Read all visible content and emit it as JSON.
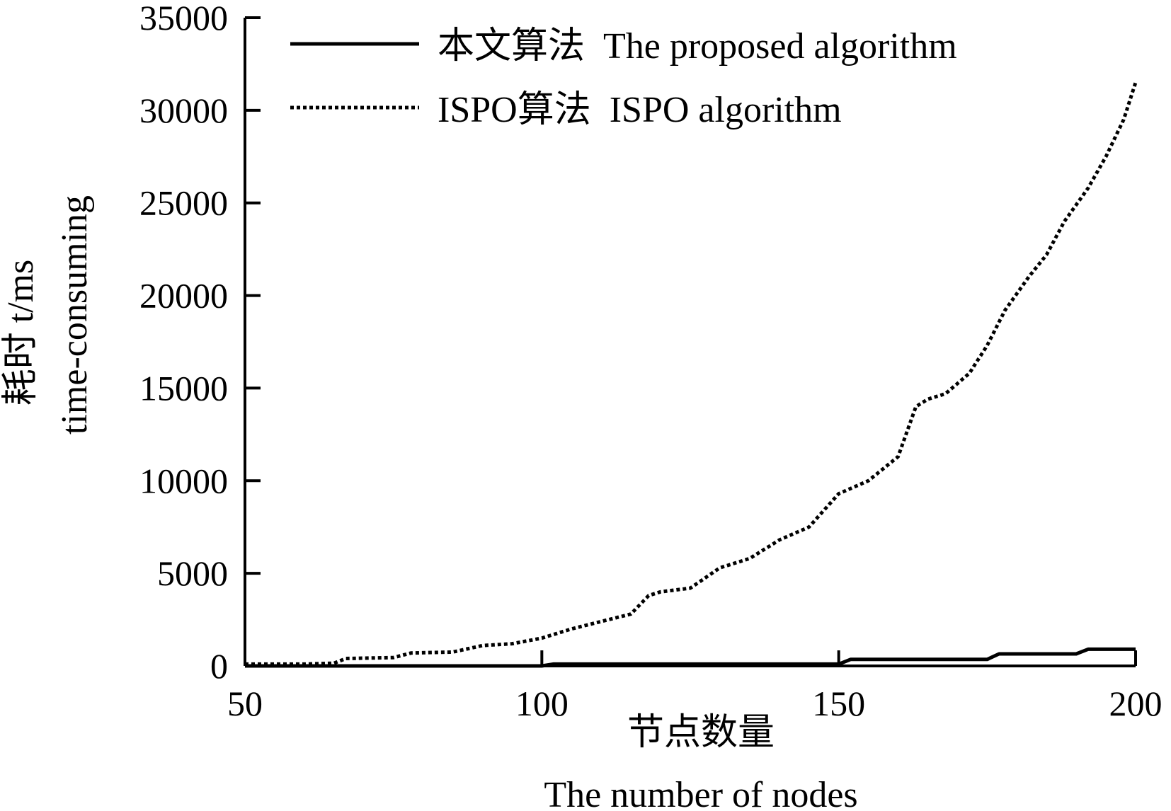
{
  "chart_data": {
    "type": "line",
    "title": "",
    "xlabel_cn": "节点数量",
    "xlabel_en": "The number of nodes",
    "ylabel_cn": "耗时 t/ms",
    "ylabel_en": "time-consuming",
    "xlim": [
      50,
      200
    ],
    "ylim": [
      0,
      35000
    ],
    "x_ticks": [
      50,
      100,
      150,
      200
    ],
    "y_ticks": [
      0,
      5000,
      10000,
      15000,
      20000,
      25000,
      30000,
      35000
    ],
    "grid": false,
    "legend_position": "top",
    "series": [
      {
        "name": "本文算法  The proposed algorithm",
        "style": "solid",
        "x": [
          50,
          100,
          102,
          150,
          152,
          175,
          177,
          190,
          192,
          200
        ],
        "y": [
          0,
          0,
          100,
          100,
          350,
          350,
          650,
          650,
          900,
          900
        ]
      },
      {
        "name": "ISPO算法  ISPO algorithm",
        "style": "dotted",
        "x": [
          50,
          60,
          65,
          67,
          75,
          78,
          85,
          90,
          95,
          100,
          105,
          110,
          115,
          118,
          120,
          125,
          130,
          135,
          140,
          145,
          150,
          155,
          160,
          163,
          165,
          168,
          172,
          175,
          178,
          182,
          185,
          188,
          192,
          195,
          198,
          200
        ],
        "y": [
          100,
          100,
          150,
          400,
          450,
          700,
          750,
          1100,
          1200,
          1500,
          2000,
          2400,
          2800,
          3800,
          4000,
          4200,
          5300,
          5800,
          6800,
          7500,
          9300,
          10000,
          11300,
          14000,
          14400,
          14700,
          15800,
          17300,
          19200,
          21000,
          22200,
          24000,
          25800,
          27500,
          29500,
          31500
        ]
      }
    ]
  }
}
